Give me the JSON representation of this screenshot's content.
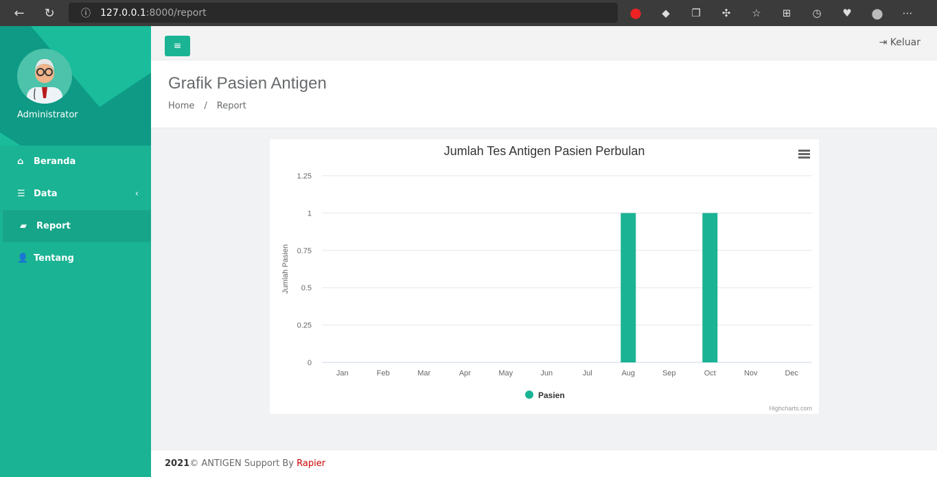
{
  "browser": {
    "url_host": "127.0.0.1",
    "url_path": ":8000/report"
  },
  "sidebar": {
    "user": "Administrator",
    "items": [
      {
        "label": "Beranda",
        "icon": "home-icon"
      },
      {
        "label": "Data",
        "icon": "database-icon",
        "chevron": "‹"
      },
      {
        "label": "Report",
        "icon": "book-icon",
        "active": true
      },
      {
        "label": "Tentang",
        "icon": "user-icon"
      }
    ]
  },
  "topbar": {
    "menu_icon": "≡",
    "logout_label": "Keluar"
  },
  "header": {
    "title": "Grafik Pasien Antigen",
    "breadcrumb": [
      "Home",
      "Report"
    ],
    "separator": "/"
  },
  "chart_data": {
    "type": "bar",
    "title": "Jumlah Tes Antigen Pasien Perbulan",
    "xlabel": "",
    "ylabel": "Jumlah Pasien",
    "categories": [
      "Jan",
      "Feb",
      "Mar",
      "Apr",
      "May",
      "Jun",
      "Jul",
      "Aug",
      "Sep",
      "Oct",
      "Nov",
      "Dec"
    ],
    "series": [
      {
        "name": "Pasien",
        "values": [
          0,
          0,
          0,
          0,
          0,
          0,
          0,
          1,
          0,
          1,
          0,
          0
        ],
        "color": "#1ab394"
      }
    ],
    "ylim": [
      0,
      1.25
    ],
    "yticks": [
      "0",
      "0.25",
      "0.5",
      "0.75",
      "1",
      "1.25"
    ],
    "grid": true,
    "legend": "bottom",
    "credits": "Highcharts.com"
  },
  "footer": {
    "year": "2021",
    "text": "© ANTIGEN Support By ",
    "brand": "Rapier"
  }
}
